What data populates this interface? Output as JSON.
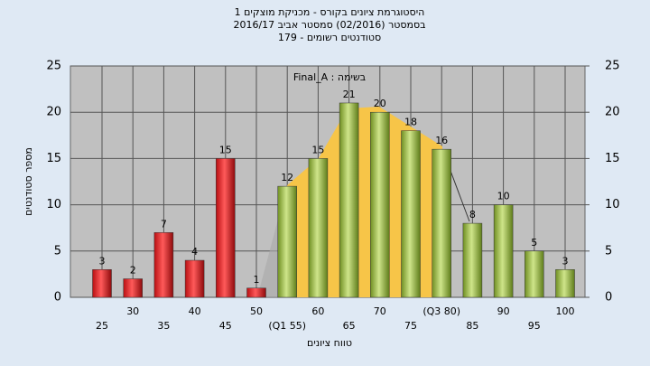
{
  "chart_data": {
    "type": "bar",
    "title_lines": [
      "היסטוגרמת ציונים בקורס - מכניקת מוצקים 1",
      "בסמסטר  (02/2016)  סמסטר אביב 2016/17",
      "סטודנטים רשומים - 179"
    ],
    "annotation": "Final_A : בשימה",
    "x_label": "טווח ציונים",
    "y_label": "מספר סטודנטים",
    "categories": [
      "25",
      "30",
      "35",
      "40",
      "45",
      "50",
      "(Q1 55)",
      "60",
      "65",
      "70",
      "75",
      "(Q3 80)",
      "85",
      "90",
      "95",
      "100"
    ],
    "values": [
      3,
      2,
      7,
      4,
      15,
      1,
      12,
      15,
      21,
      20,
      18,
      16,
      8,
      10,
      5,
      3
    ],
    "colors": [
      "red",
      "red",
      "red",
      "red",
      "red",
      "red",
      "green",
      "green",
      "green",
      "green",
      "green",
      "green",
      "green",
      "green",
      "green",
      "green"
    ],
    "ylim": [
      0,
      25
    ],
    "yticks": [
      0,
      5,
      10,
      15,
      20,
      25
    ],
    "y2lim": [
      0,
      25
    ],
    "y2ticks": [
      0,
      5,
      10,
      15,
      20,
      25
    ],
    "grid": true
  }
}
